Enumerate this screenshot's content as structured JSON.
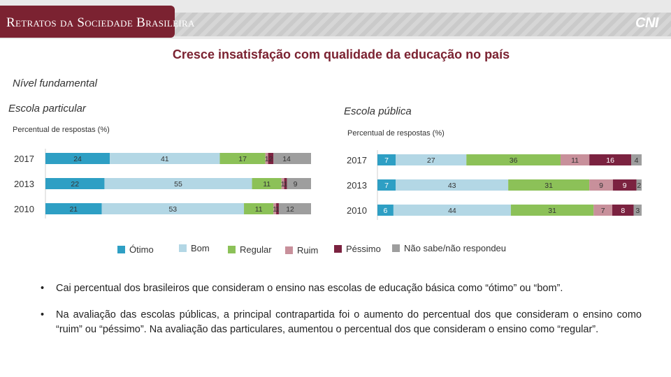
{
  "header": {
    "banner": "Retratos da Sociedade Brasileira",
    "logo": "CNI"
  },
  "title": "Cresce insatisfação com qualidade da educação no país",
  "subtitle": "Nível fundamental",
  "chart_data": [
    {
      "type": "bar",
      "stacked": true,
      "orientation": "horizontal",
      "title": "Escola particular",
      "xlabel": "Percentual de respostas (%)",
      "categories": [
        "2017",
        "2013",
        "2010"
      ],
      "series": [
        {
          "name": "Ótimo",
          "values": [
            24,
            22,
            21
          ]
        },
        {
          "name": "Bom",
          "values": [
            41,
            55,
            53
          ]
        },
        {
          "name": "Regular",
          "values": [
            17,
            11,
            11
          ]
        },
        {
          "name": "Ruim",
          "values": [
            1,
            1,
            1
          ]
        },
        {
          "name": "Péssimo",
          "values": [
            2,
            1,
            1
          ]
        },
        {
          "name": "Não sabe/não respondeu",
          "values": [
            14,
            9,
            12
          ]
        }
      ]
    },
    {
      "type": "bar",
      "stacked": true,
      "orientation": "horizontal",
      "title": "Escola pública",
      "xlabel": "Percentual de respostas (%)",
      "categories": [
        "2017",
        "2013",
        "2010"
      ],
      "series": [
        {
          "name": "Ótimo",
          "values": [
            7,
            7,
            6
          ]
        },
        {
          "name": "Bom",
          "values": [
            27,
            43,
            44
          ]
        },
        {
          "name": "Regular",
          "values": [
            36,
            31,
            31
          ]
        },
        {
          "name": "Ruim",
          "values": [
            11,
            9,
            7
          ]
        },
        {
          "name": "Péssimo",
          "values": [
            16,
            9,
            8
          ]
        },
        {
          "name": "Não sabe/não respondeu",
          "values": [
            4,
            2,
            3
          ]
        }
      ]
    }
  ],
  "legend": [
    {
      "label": "Ótimo",
      "color": "#2e9fc4"
    },
    {
      "label": "Bom",
      "color": "#b3d7e5"
    },
    {
      "label": "Regular",
      "color": "#8cc158"
    },
    {
      "label": "Ruim",
      "color": "#c8909b"
    },
    {
      "label": "Péssimo",
      "color": "#7b2240"
    },
    {
      "label": "Não sabe/não respondeu",
      "color": "#9e9e9e"
    }
  ],
  "bullets": [
    "Cai percentual dos brasileiros que consideram o ensino nas escolas de educação básica como “ótimo” ou “bom”.",
    "Na avaliação das escolas públicas, a principal contrapartida foi o aumento do percentual dos que consideram o ensino como “ruim” ou “péssimo”. Na avaliação das particulares, aumentou o percentual dos que consideram o ensino como “regular”."
  ],
  "bullet_marker": "•"
}
